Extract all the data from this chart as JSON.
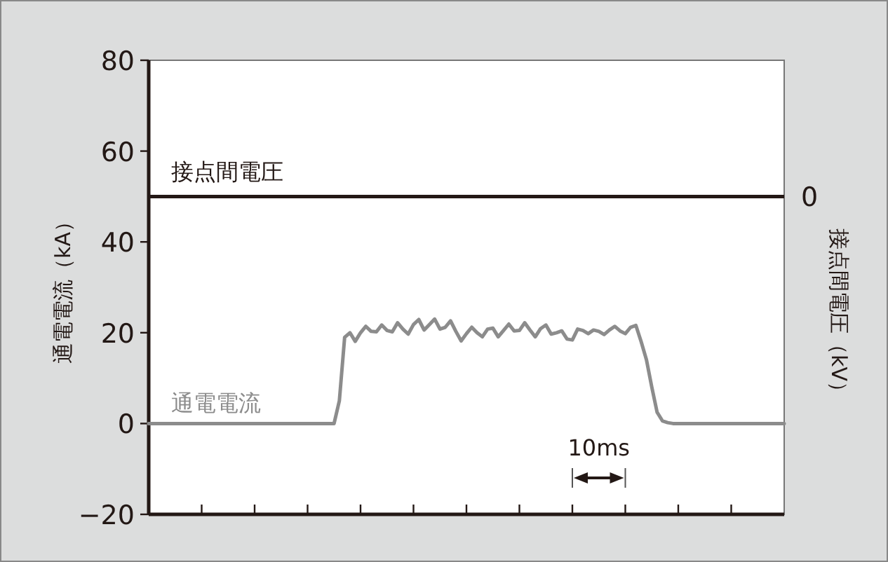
{
  "chart_data": {
    "type": "line",
    "ylabel": "通電電流（kA）",
    "y2label": "接点間電圧（kV）",
    "categories": [
      null,
      null,
      null,
      null,
      null,
      null,
      null,
      null,
      null,
      null,
      null,
      null,
      null,
      null,
      null,
      null,
      null,
      null,
      null,
      null,
      null,
      null,
      null,
      null,
      null,
      null,
      null,
      null,
      null,
      null,
      null,
      null,
      null,
      null,
      null,
      null,
      null,
      null,
      null,
      null,
      null,
      null,
      null,
      null,
      null,
      null,
      null,
      null,
      null,
      null,
      null,
      null,
      null,
      null,
      null,
      null,
      null,
      null,
      null,
      null,
      null,
      null,
      null,
      null,
      null,
      null,
      null,
      null,
      null,
      null,
      null,
      null,
      null,
      null,
      null,
      null,
      null,
      null,
      null,
      null,
      null,
      null,
      null,
      null,
      null,
      null,
      null,
      null,
      null,
      null,
      null,
      null,
      null,
      null,
      null,
      null,
      null,
      null,
      null,
      null,
      null,
      null,
      null,
      null,
      null,
      null,
      null,
      null,
      null,
      null,
      null,
      null,
      null,
      null,
      null,
      null,
      null,
      null,
      null,
      null,
      null
    ],
    "ylim": [
      -20,
      80
    ],
    "yticks": [
      {
        "value": -20,
        "label": "−20"
      },
      {
        "value": 0,
        "label": "0"
      },
      {
        "value": 20,
        "label": "20"
      },
      {
        "value": 40,
        "label": "40"
      },
      {
        "value": 60,
        "label": "60"
      },
      {
        "value": 80,
        "label": "80"
      }
    ],
    "ref_lines": [
      {
        "axis": "y",
        "value": 50,
        "label": "接点間電圧",
        "color": "#231815"
      }
    ],
    "series": [
      {
        "name": "通電電流",
        "color": "#8c8c8c",
        "values": [
          0,
          0,
          0,
          0,
          0,
          0,
          0,
          0,
          0,
          0,
          0,
          0,
          0,
          0,
          0,
          0,
          0,
          0,
          0,
          0,
          0,
          0,
          0,
          0,
          0,
          0,
          0,
          0,
          0,
          0,
          0,
          0,
          0,
          0,
          0,
          0,
          5,
          19,
          20,
          18.1,
          20,
          21.4,
          20.3,
          20.2,
          21.7,
          20.5,
          20.2,
          22.2,
          20.8,
          19.7,
          21.8,
          22.9,
          20.6,
          21.8,
          23,
          20.8,
          21.2,
          22.6,
          20.3,
          18.2,
          19.8,
          21.2,
          20,
          19.1,
          20.8,
          21,
          19.1,
          20.5,
          21.9,
          20.4,
          20.5,
          22.2,
          20.6,
          19.1,
          20.9,
          21.7,
          19.7,
          20,
          20.4,
          18.6,
          18.4,
          20.8,
          20.5,
          19.8,
          20.6,
          20.3,
          19.6,
          20.6,
          21.4,
          20.4,
          19.8,
          21.2,
          21.6,
          18,
          14,
          8,
          2.5,
          0.6,
          0.2,
          0,
          0,
          0,
          0,
          0,
          0,
          0,
          0,
          0,
          0,
          0,
          0,
          0,
          0,
          0,
          0,
          0,
          0,
          0,
          0,
          0,
          0
        ]
      }
    ],
    "annotations": [
      "10ms",
      "0"
    ]
  }
}
